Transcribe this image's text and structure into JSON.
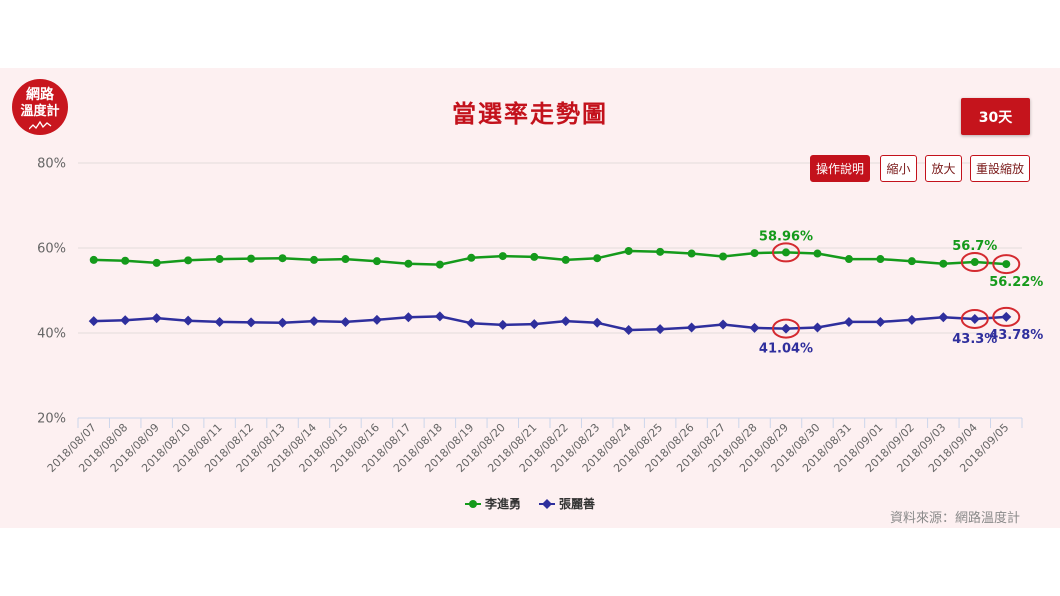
{
  "logo": {
    "line1": "網路",
    "line2": "溫度計"
  },
  "header": {
    "range_button": "30天"
  },
  "toolbar": {
    "help": "操作說明",
    "zoom_out": "縮小",
    "zoom_in": "放大",
    "reset_zoom": "重設縮放"
  },
  "source": "資料來源：網路溫度計",
  "colors": {
    "accent": "#c3121c",
    "panel_background": "#fdf0f1",
    "highlight_ring": "#d42a30"
  },
  "chart_data": {
    "type": "line",
    "title": "當選率走勢圖",
    "categories": [
      "2018/08/07",
      "2018/08/08",
      "2018/08/09",
      "2018/08/10",
      "2018/08/11",
      "2018/08/12",
      "2018/08/13",
      "2018/08/14",
      "2018/08/15",
      "2018/08/16",
      "2018/08/17",
      "2018/08/18",
      "2018/08/19",
      "2018/08/20",
      "2018/08/21",
      "2018/08/22",
      "2018/08/23",
      "2018/08/24",
      "2018/08/25",
      "2018/08/26",
      "2018/08/27",
      "2018/08/28",
      "2018/08/29",
      "2018/08/30",
      "2018/08/31",
      "2018/09/01",
      "2018/09/02",
      "2018/09/03",
      "2018/09/04",
      "2018/09/05"
    ],
    "ylim": [
      20,
      80
    ],
    "yticks": [
      20,
      40,
      60,
      80
    ],
    "ytick_labels": [
      "20%",
      "40%",
      "60%",
      "80%"
    ],
    "grid": true,
    "legend": "bottom-center",
    "series": [
      {
        "name": "李進勇",
        "color": "#159a1b",
        "marker": "circle",
        "values": [
          57.2,
          57.0,
          56.5,
          57.1,
          57.4,
          57.5,
          57.6,
          57.2,
          57.4,
          56.9,
          56.3,
          56.1,
          57.7,
          58.1,
          57.9,
          57.2,
          57.6,
          59.3,
          59.1,
          58.7,
          58.0,
          58.8,
          58.96,
          58.7,
          57.4,
          57.4,
          56.9,
          56.3,
          56.7,
          56.22
        ],
        "data_labels": [
          {
            "x": "2018/08/29",
            "text": "58.96%",
            "placement": "above",
            "circled": true
          },
          {
            "x": "2018/09/04",
            "text": "56.7%",
            "placement": "above",
            "circled": true
          },
          {
            "x": "2018/09/05",
            "text": "56.22%",
            "placement": "below-right",
            "circled": true
          }
        ]
      },
      {
        "name": "張麗善",
        "color": "#2f2f9d",
        "marker": "diamond",
        "values": [
          42.8,
          43.0,
          43.5,
          42.9,
          42.6,
          42.5,
          42.4,
          42.8,
          42.6,
          43.1,
          43.7,
          43.9,
          42.3,
          41.9,
          42.1,
          42.8,
          42.4,
          40.7,
          40.9,
          41.3,
          42.0,
          41.2,
          41.04,
          41.3,
          42.6,
          42.6,
          43.1,
          43.7,
          43.3,
          43.78
        ],
        "data_labels": [
          {
            "x": "2018/08/29",
            "text": "41.04%",
            "placement": "below",
            "circled": true
          },
          {
            "x": "2018/09/04",
            "text": "43.3%",
            "placement": "below",
            "circled": true
          },
          {
            "x": "2018/09/05",
            "text": "43.78%",
            "placement": "below-right",
            "circled": true
          }
        ]
      }
    ]
  }
}
